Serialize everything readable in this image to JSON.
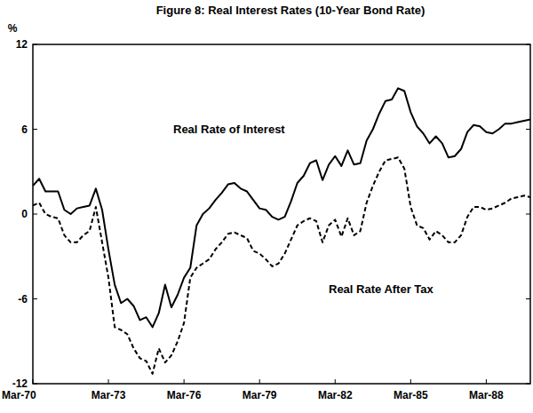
{
  "chart_data": {
    "type": "line",
    "title": "Figure 8: Real Interest Rates (10-Year Bond Rate)",
    "y_label": "%",
    "categories": [
      "Mar-70",
      null,
      null,
      null,
      null,
      null,
      null,
      null,
      null,
      null,
      null,
      null,
      "Mar-73",
      null,
      null,
      null,
      null,
      null,
      null,
      null,
      null,
      null,
      null,
      null,
      "Mar-76",
      null,
      null,
      null,
      null,
      null,
      null,
      null,
      null,
      null,
      null,
      null,
      "Mar-79",
      null,
      null,
      null,
      null,
      null,
      null,
      null,
      null,
      null,
      null,
      null,
      "Mar-82",
      null,
      null,
      null,
      null,
      null,
      null,
      null,
      null,
      null,
      null,
      null,
      "Mar-85",
      null,
      null,
      null,
      null,
      null,
      null,
      null,
      null,
      null,
      null,
      null,
      "Mar-88",
      null,
      null,
      null,
      null,
      null,
      null,
      null
    ],
    "series": [
      {
        "name": "Real Rate of Interest",
        "color": "#000000",
        "line_style": "solid",
        "values": [
          2.0,
          2.5,
          1.6,
          1.6,
          1.6,
          0.3,
          0.0,
          0.4,
          0.5,
          0.6,
          1.8,
          0.3,
          -2.5,
          -5.0,
          -6.3,
          -6.0,
          -6.5,
          -7.5,
          -7.3,
          -8.0,
          -7.0,
          -5.0,
          -6.6,
          -5.7,
          -4.5,
          -3.8,
          -0.8,
          0.0,
          0.4,
          1.0,
          1.5,
          2.1,
          2.2,
          1.8,
          1.6,
          1.0,
          0.4,
          0.3,
          -0.2,
          -0.4,
          -0.2,
          0.9,
          2.2,
          2.7,
          3.6,
          3.8,
          2.4,
          3.5,
          4.1,
          3.4,
          4.5,
          3.5,
          3.6,
          5.2,
          6.0,
          7.1,
          8.0,
          8.1,
          8.9,
          8.7,
          7.2,
          6.2,
          5.7,
          5.0,
          5.5,
          5.0,
          4.0,
          4.1,
          4.6,
          5.8,
          6.3,
          6.2,
          5.8,
          5.7,
          6.0,
          6.4,
          6.4,
          6.5,
          6.6,
          6.7
        ]
      },
      {
        "name": "Real Rate After Tax",
        "color": "#000000",
        "line_style": "dashed",
        "values": [
          0.6,
          0.8,
          0.0,
          -0.2,
          -0.3,
          -1.5,
          -2.0,
          -2.0,
          -1.5,
          -1.2,
          0.5,
          -2.0,
          -4.5,
          -8.0,
          -8.2,
          -8.5,
          -9.5,
          -10.2,
          -10.4,
          -11.3,
          -9.5,
          -10.5,
          -10.0,
          -9.0,
          -7.7,
          -4.5,
          -3.8,
          -3.5,
          -3.2,
          -2.5,
          -2.0,
          -1.4,
          -1.3,
          -1.5,
          -1.7,
          -2.6,
          -2.8,
          -3.2,
          -3.7,
          -3.5,
          -2.8,
          -1.8,
          -0.8,
          -0.5,
          -0.3,
          -0.5,
          -2.0,
          -0.8,
          -0.4,
          -1.6,
          -0.3,
          -1.5,
          -1.2,
          0.8,
          2.0,
          3.0,
          3.8,
          3.9,
          4.0,
          3.2,
          0.5,
          -0.8,
          -1.0,
          -1.8,
          -1.2,
          -1.5,
          -2.0,
          -2.0,
          -1.5,
          -0.2,
          0.5,
          0.5,
          0.3,
          0.4,
          0.6,
          0.8,
          1.1,
          1.2,
          1.3,
          1.2
        ]
      }
    ],
    "ylim": [
      -12,
      12
    ],
    "yticks": [
      12,
      6,
      0,
      -6,
      -12
    ],
    "grid": false
  }
}
